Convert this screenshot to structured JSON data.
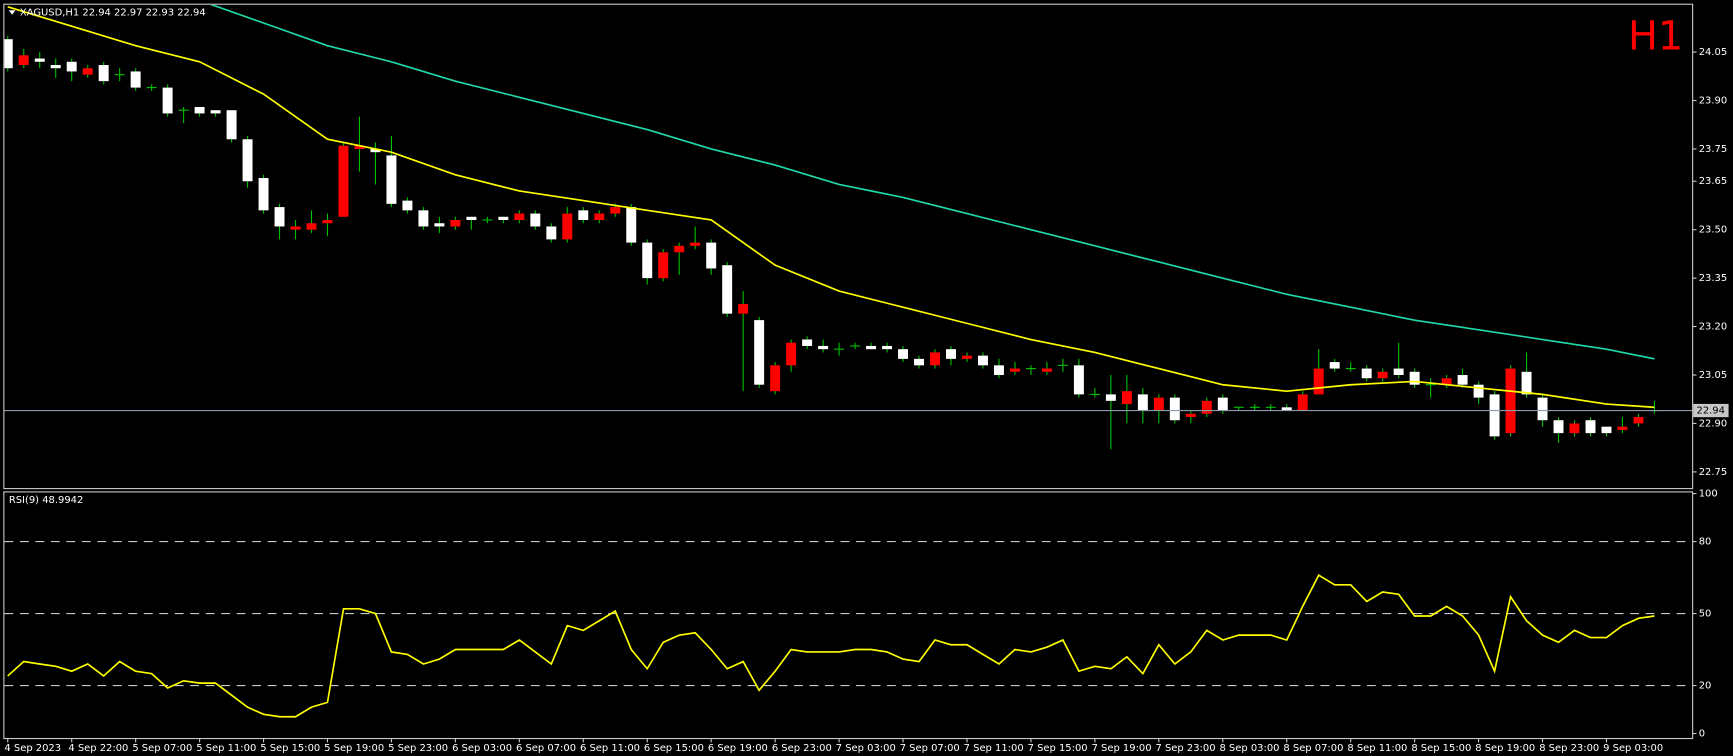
{
  "chart_data": [
    {
      "type": "candlestick",
      "title": "XAGUSD,H1  22.94 22.97 22.93 22.94",
      "annotation": "H1",
      "categories": [
        "4 Sep 2023",
        null,
        null,
        null,
        "4 Sep 22:00",
        null,
        null,
        null,
        "5 Sep 07:00",
        null,
        null,
        null,
        "5 Sep 11:00",
        null,
        null,
        null,
        "5 Sep 15:00",
        null,
        null,
        null,
        "5 Sep 19:00",
        null,
        null,
        null,
        "5 Sep 23:00",
        null,
        null,
        null,
        "6 Sep 03:00",
        null,
        null,
        null,
        "6 Sep 07:00",
        null,
        null,
        null,
        "6 Sep 11:00",
        null,
        null,
        null,
        "6 Sep 15:00",
        null,
        null,
        null,
        "6 Sep 19:00",
        null,
        null,
        null,
        "6 Sep 23:00",
        null,
        null,
        null,
        "7 Sep 03:00",
        null,
        null,
        null,
        "7 Sep 07:00",
        null,
        null,
        null,
        "7 Sep 11:00",
        null,
        null,
        null,
        "7 Sep 15:00",
        null,
        null,
        null,
        "7 Sep 19:00",
        null,
        null,
        null,
        "7 Sep 23:00",
        null,
        null,
        null,
        "8 Sep 03:00",
        null,
        null,
        null,
        "8 Sep 07:00",
        null,
        null,
        null,
        "8 Sep 11:00",
        null,
        null,
        null,
        "8 Sep 15:00",
        null,
        null,
        null,
        "8 Sep 19:00",
        null,
        null,
        null,
        "8 Sep 23:00",
        null,
        null,
        null,
        "9 Sep 03:00",
        null,
        null,
        null
      ],
      "open": [
        24.09,
        24.01,
        24.03,
        24.01,
        24.02,
        23.98,
        24.01,
        23.98,
        23.99,
        23.94,
        23.94,
        23.87,
        23.88,
        23.87,
        23.87,
        23.78,
        23.66,
        23.57,
        23.5,
        23.5,
        23.52,
        23.54,
        23.75,
        23.75,
        23.73,
        23.59,
        23.56,
        23.52,
        23.51,
        23.54,
        23.53,
        23.54,
        23.53,
        23.55,
        23.51,
        23.47,
        23.56,
        23.53,
        23.55,
        23.57,
        23.46,
        23.35,
        23.43,
        23.45,
        23.46,
        23.39,
        23.24,
        23.22,
        23.0,
        23.08,
        23.16,
        23.14,
        23.13,
        23.14,
        23.14,
        23.14,
        23.13,
        23.1,
        23.08,
        23.13,
        23.1,
        23.11,
        23.08,
        23.06,
        23.07,
        23.06,
        23.08,
        23.08,
        22.99,
        22.99,
        22.96,
        22.99,
        22.94,
        22.98,
        22.92,
        22.93,
        22.98,
        22.95,
        22.95,
        22.95,
        22.95,
        22.94,
        22.99,
        23.09,
        23.07,
        23.07,
        23.04,
        23.07,
        23.06,
        23.02,
        23.02,
        23.05,
        23.02,
        22.99,
        22.87,
        23.06,
        22.98,
        22.91,
        22.87,
        22.91,
        22.89,
        22.88,
        22.9,
        22.94
      ],
      "high": [
        24.1,
        24.06,
        24.05,
        24.03,
        24.03,
        24.01,
        24.02,
        24.0,
        24.0,
        23.95,
        23.95,
        23.88,
        23.88,
        23.87,
        23.87,
        23.79,
        23.67,
        23.58,
        23.53,
        23.56,
        23.55,
        23.77,
        23.85,
        23.77,
        23.79,
        23.6,
        23.57,
        23.54,
        23.54,
        23.54,
        23.54,
        23.54,
        23.56,
        23.56,
        23.52,
        23.57,
        23.57,
        23.56,
        23.58,
        23.58,
        23.47,
        23.44,
        23.46,
        23.51,
        23.47,
        23.4,
        23.31,
        23.23,
        23.09,
        23.16,
        23.17,
        23.16,
        23.15,
        23.15,
        23.15,
        23.15,
        23.14,
        23.11,
        23.13,
        23.14,
        23.12,
        23.12,
        23.1,
        23.09,
        23.08,
        23.09,
        23.1,
        23.1,
        23.01,
        23.05,
        23.05,
        23.01,
        22.99,
        22.99,
        22.94,
        22.98,
        22.99,
        22.95,
        22.96,
        22.96,
        22.96,
        23.0,
        23.13,
        23.1,
        23.09,
        23.08,
        23.07,
        23.15,
        23.07,
        23.04,
        23.05,
        23.07,
        23.03,
        23.0,
        23.08,
        23.12,
        22.99,
        22.92,
        22.91,
        22.92,
        22.89,
        22.92,
        22.93,
        22.97
      ],
      "low": [
        23.99,
        24.0,
        24.0,
        23.97,
        23.96,
        23.97,
        23.95,
        23.96,
        23.93,
        23.93,
        23.85,
        23.83,
        23.85,
        23.85,
        23.77,
        23.63,
        23.55,
        23.47,
        23.47,
        23.49,
        23.48,
        23.54,
        23.68,
        23.64,
        23.57,
        23.55,
        23.5,
        23.49,
        23.5,
        23.5,
        23.52,
        23.52,
        23.52,
        23.5,
        23.46,
        23.46,
        23.52,
        23.52,
        23.54,
        23.45,
        23.33,
        23.34,
        23.36,
        23.44,
        23.36,
        23.23,
        23.0,
        23.01,
        22.99,
        23.06,
        23.13,
        23.12,
        23.11,
        23.13,
        23.13,
        23.12,
        23.09,
        23.07,
        23.07,
        23.08,
        23.09,
        23.07,
        23.04,
        23.05,
        23.05,
        23.05,
        23.06,
        22.98,
        22.98,
        22.82,
        22.9,
        22.9,
        22.9,
        22.9,
        22.9,
        22.92,
        22.93,
        22.94,
        22.94,
        22.94,
        22.94,
        22.94,
        22.99,
        23.06,
        23.06,
        23.03,
        23.03,
        23.04,
        23.01,
        22.98,
        23.01,
        23.01,
        22.96,
        22.85,
        22.86,
        22.98,
        22.89,
        22.84,
        22.86,
        22.86,
        22.86,
        22.87,
        22.89,
        22.93
      ],
      "close": [
        24.0,
        24.04,
        24.02,
        24.0,
        23.99,
        24.0,
        23.96,
        23.98,
        23.94,
        23.94,
        23.86,
        23.87,
        23.86,
        23.86,
        23.78,
        23.65,
        23.56,
        23.51,
        23.51,
        23.52,
        23.53,
        23.76,
        23.76,
        23.74,
        23.58,
        23.56,
        23.51,
        23.51,
        23.53,
        23.53,
        23.53,
        23.53,
        23.55,
        23.51,
        23.47,
        23.55,
        23.53,
        23.55,
        23.57,
        23.46,
        23.35,
        23.43,
        23.45,
        23.46,
        23.38,
        23.24,
        23.27,
        23.02,
        23.08,
        23.15,
        23.14,
        23.13,
        23.13,
        23.14,
        23.13,
        23.13,
        23.1,
        23.08,
        23.12,
        23.1,
        23.11,
        23.08,
        23.05,
        23.07,
        23.07,
        23.07,
        23.08,
        22.99,
        22.99,
        22.97,
        23.0,
        22.94,
        22.98,
        22.91,
        22.93,
        22.97,
        22.94,
        22.95,
        22.95,
        22.95,
        22.94,
        22.99,
        23.07,
        23.07,
        23.07,
        23.04,
        23.06,
        23.05,
        23.02,
        23.02,
        23.04,
        23.02,
        22.98,
        22.86,
        23.07,
        22.99,
        22.91,
        22.87,
        22.9,
        22.87,
        22.87,
        22.89,
        22.92,
        22.94
      ],
      "up_color": "#ff0000",
      "down_color": "#ffffff",
      "wick_color": "#00c000",
      "series": [
        {
          "color": "#ffff00",
          "x": [
            0,
            4,
            8,
            12,
            16,
            20,
            24,
            28,
            32,
            36,
            40,
            44,
            48,
            52,
            56,
            60,
            64,
            68,
            72,
            76,
            80,
            84,
            88,
            92,
            96,
            100,
            103
          ],
          "values": [
            24.19,
            24.13,
            24.07,
            24.02,
            23.92,
            23.78,
            23.74,
            23.67,
            23.62,
            23.59,
            23.56,
            23.53,
            23.39,
            23.31,
            23.26,
            23.21,
            23.16,
            23.12,
            23.07,
            23.02,
            23.0,
            23.02,
            23.03,
            23.01,
            22.99,
            22.96,
            22.95
          ]
        },
        {
          "color": "#20d8a8",
          "x": [
            12,
            16,
            20,
            24,
            28,
            32,
            36,
            40,
            44,
            48,
            52,
            56,
            60,
            64,
            68,
            72,
            76,
            80,
            84,
            88,
            92,
            96,
            100,
            103
          ],
          "values": [
            24.21,
            24.14,
            24.07,
            24.02,
            23.96,
            23.91,
            23.86,
            23.81,
            23.75,
            23.7,
            23.64,
            23.6,
            23.55,
            23.5,
            23.45,
            23.4,
            23.35,
            23.3,
            23.26,
            23.22,
            23.19,
            23.16,
            23.13,
            23.1
          ]
        }
      ],
      "ylim": [
        22.7,
        24.2
      ],
      "yticks": [
        24.05,
        {
          "value": 23.9,
          "label": "23.90"
        },
        23.75,
        23.65,
        {
          "value": 23.5,
          "label": "23.50"
        },
        23.35,
        {
          "value": 23.2,
          "label": "23.20"
        },
        23.05,
        {
          "value": 22.9,
          "label": "22.90"
        },
        22.75
      ],
      "last_price": 22.94
    },
    {
      "type": "line",
      "title": "RSI(9) 48.9942",
      "color": "#ffff00",
      "values": [
        24,
        30,
        29,
        28,
        26,
        29,
        24,
        30,
        26,
        25,
        19,
        22,
        21,
        21,
        16,
        11,
        8,
        7,
        7,
        11,
        13,
        52,
        52,
        50,
        34,
        33,
        29,
        31,
        35,
        35,
        35,
        35,
        39,
        34,
        29,
        45,
        43,
        47,
        51,
        35,
        27,
        38,
        41,
        42,
        35,
        27,
        30,
        18,
        26,
        35,
        34,
        34,
        34,
        35,
        35,
        34,
        31,
        30,
        39,
        37,
        37,
        33,
        29,
        35,
        34,
        36,
        39,
        26,
        28,
        27,
        32,
        25,
        37,
        29,
        34,
        43,
        39,
        41,
        41,
        41,
        39,
        53,
        66,
        62,
        62,
        55,
        59,
        58,
        49,
        49,
        53,
        49,
        41,
        26,
        57,
        47,
        41,
        38,
        43,
        40,
        40,
        45,
        48,
        48.9942
      ],
      "ylim": [
        0,
        100
      ],
      "yticks": [
        0,
        20,
        50,
        80,
        100
      ],
      "levels": [
        20,
        50,
        80
      ]
    }
  ]
}
